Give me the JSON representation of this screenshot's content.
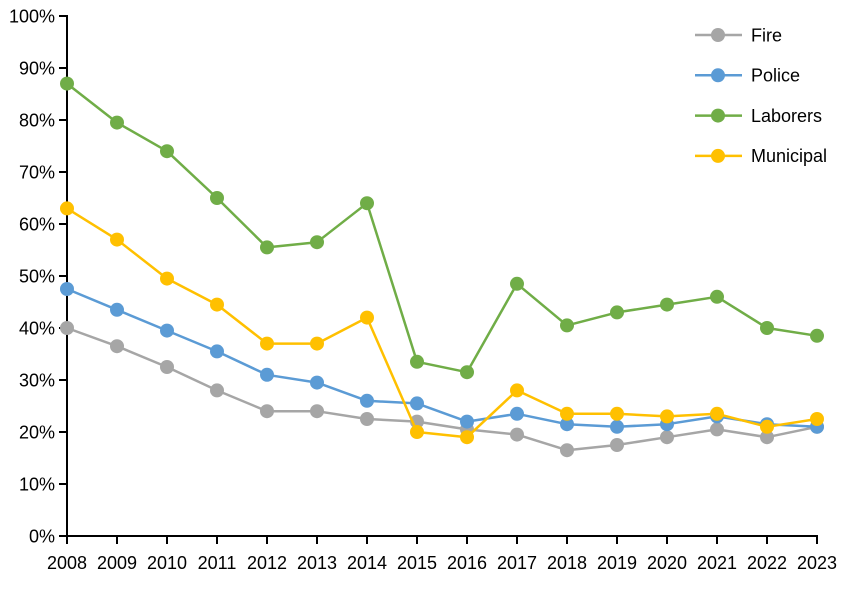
{
  "chart_data": {
    "type": "line",
    "title": "",
    "xlabel": "",
    "ylabel": "",
    "x": [
      "2008",
      "2009",
      "2010",
      "2011",
      "2012",
      "2013",
      "2014",
      "2015",
      "2016",
      "2017",
      "2018",
      "2019",
      "2020",
      "2021",
      "2022",
      "2023"
    ],
    "series": [
      {
        "name": "Fire",
        "color": "#A6A6A6",
        "values": [
          40.0,
          36.5,
          32.5,
          28.0,
          24.0,
          24.0,
          22.5,
          22.0,
          20.5,
          19.5,
          16.5,
          17.5,
          19.0,
          20.5,
          19.0,
          21.0
        ]
      },
      {
        "name": "Police",
        "color": "#5B9BD5",
        "values": [
          47.5,
          43.5,
          39.5,
          35.5,
          31.0,
          29.5,
          26.0,
          25.5,
          22.0,
          23.5,
          21.5,
          21.0,
          21.5,
          23.0,
          21.5,
          21.0
        ]
      },
      {
        "name": "Laborers",
        "color": "#70AD47",
        "values": [
          87.0,
          79.5,
          74.0,
          65.0,
          55.5,
          56.5,
          64.0,
          33.5,
          31.5,
          48.5,
          40.5,
          43.0,
          44.5,
          46.0,
          40.0,
          38.5
        ]
      },
      {
        "name": "Municipal",
        "color": "#FFC000",
        "values": [
          63.0,
          57.0,
          49.5,
          44.5,
          37.0,
          37.0,
          42.0,
          20.0,
          19.0,
          28.0,
          23.5,
          23.5,
          23.0,
          23.5,
          21.0,
          22.5
        ]
      }
    ],
    "ylim": [
      0,
      100
    ],
    "ytick_step": 10,
    "ytick_labels": [
      "0%",
      "10%",
      "20%",
      "30%",
      "40%",
      "50%",
      "60%",
      "70%",
      "80%",
      "90%",
      "100%"
    ],
    "grid": false,
    "legend_position": "top-right",
    "axis_color": "#000000"
  }
}
